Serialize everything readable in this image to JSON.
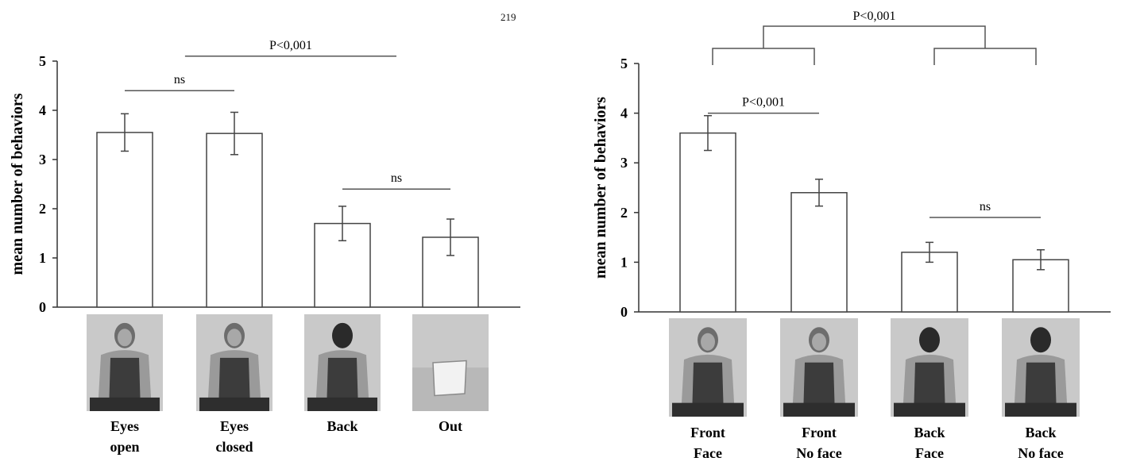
{
  "page_number": "219",
  "chart_data": [
    {
      "type": "bar",
      "categories": [
        {
          "line1": "Eyes",
          "line2": "open"
        },
        {
          "line1": "Eyes",
          "line2": "closed"
        },
        {
          "line1": "Back",
          "line2": ""
        },
        {
          "line1": "Out",
          "line2": ""
        }
      ],
      "values": [
        3.55,
        3.53,
        1.7,
        1.42
      ],
      "errors": [
        0.38,
        0.43,
        0.35,
        0.37
      ],
      "ylabel": "mean number of behaviors",
      "ylim": [
        0,
        5
      ],
      "yticks": [
        0,
        1,
        2,
        3,
        4,
        5
      ],
      "grid": false,
      "images": [
        "person-front-eyes-open",
        "person-front-eyes-closed",
        "person-back",
        "empty-chair"
      ],
      "annotations": [
        {
          "label": "ns",
          "from": 0,
          "to": 1,
          "y": 4.4
        },
        {
          "label": "P<0,001",
          "from": 0.55,
          "to": 2.5,
          "y": 5.1
        },
        {
          "label": "ns",
          "from": 2,
          "to": 3,
          "y": 2.4
        }
      ]
    },
    {
      "type": "bar",
      "categories": [
        {
          "line1": "Front",
          "line2": "Face"
        },
        {
          "line1": "Front",
          "line2": "No face"
        },
        {
          "line1": "Back",
          "line2": "Face"
        },
        {
          "line1": "Back",
          "line2": "No face"
        }
      ],
      "values": [
        3.6,
        2.4,
        1.2,
        1.05
      ],
      "errors": [
        0.35,
        0.27,
        0.2,
        0.2
      ],
      "ylabel": "mean number of behaviors",
      "ylim": [
        0,
        5
      ],
      "yticks": [
        0,
        1,
        2,
        3,
        4,
        5
      ],
      "grid": false,
      "images": [
        "person-front-face",
        "person-front-no-face",
        "person-back-face",
        "person-back-no-face"
      ],
      "annotations": [
        {
          "label": "P<0,001",
          "from": 0,
          "to": 1,
          "y": 4.0
        },
        {
          "label": "ns",
          "from": 2,
          "to": 3,
          "y": 1.9
        }
      ],
      "group_bracket": {
        "label": "P<0,001",
        "groups": [
          [
            0,
            1
          ],
          [
            2,
            3
          ]
        ]
      }
    }
  ]
}
